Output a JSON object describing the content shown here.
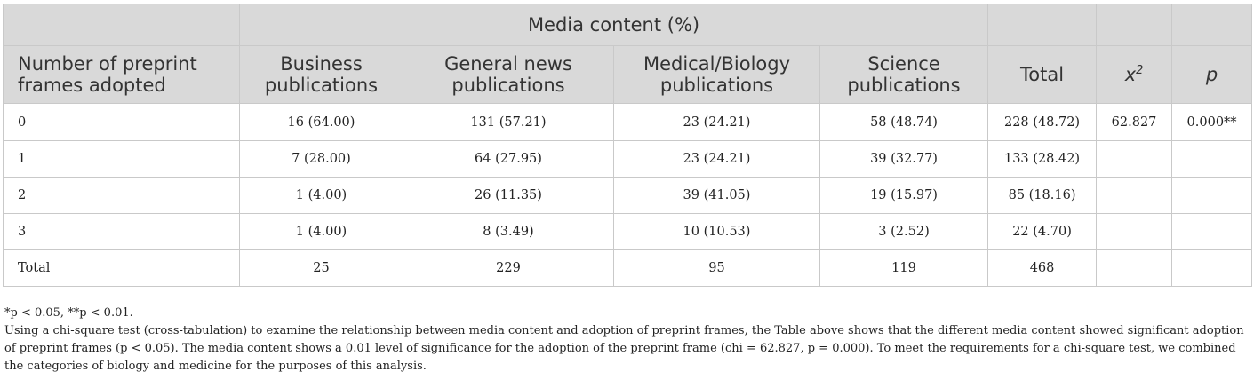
{
  "header": {
    "group_label": "Media content (%)",
    "row_header": "Number of preprint frames adopted",
    "columns": [
      "Business publications",
      "General news publications",
      "Medical/Biology publications",
      "Science publications",
      "Total"
    ],
    "chi_symbol": "x",
    "chi_sup": "2",
    "p_label": "p"
  },
  "rows": [
    [
      "0",
      "16 (64.00)",
      "131 (57.21)",
      "23 (24.21)",
      "58 (48.74)",
      "228 (48.72)",
      "62.827",
      "0.000**"
    ],
    [
      "1",
      "7 (28.00)",
      "64 (27.95)",
      "23 (24.21)",
      "39 (32.77)",
      "133 (28.42)",
      "",
      ""
    ],
    [
      "2",
      "1 (4.00)",
      "26 (11.35)",
      "39 (41.05)",
      "19 (15.97)",
      "85 (18.16)",
      "",
      ""
    ],
    [
      "3",
      "1 (4.00)",
      "8 (3.49)",
      "10 (10.53)",
      "3 (2.52)",
      "22 (4.70)",
      "",
      ""
    ],
    [
      "Total",
      "25",
      "229",
      "95",
      "119",
      "468",
      "",
      ""
    ]
  ],
  "notes": {
    "significance": "*p < 0.05, **p < 0.01.",
    "description": "Using a chi-square test (cross-tabulation) to examine the relationship between media content and adoption of preprint frames, the Table above shows that the different media content showed significant adoption of preprint frames (p < 0.05). The media content shows a 0.01 level of significance for the adoption of the preprint frame (chi = 62.827, p = 0.000). To meet the requirements for a chi-square test, we combined the categories of biology and medicine for the purposes of this analysis."
  }
}
